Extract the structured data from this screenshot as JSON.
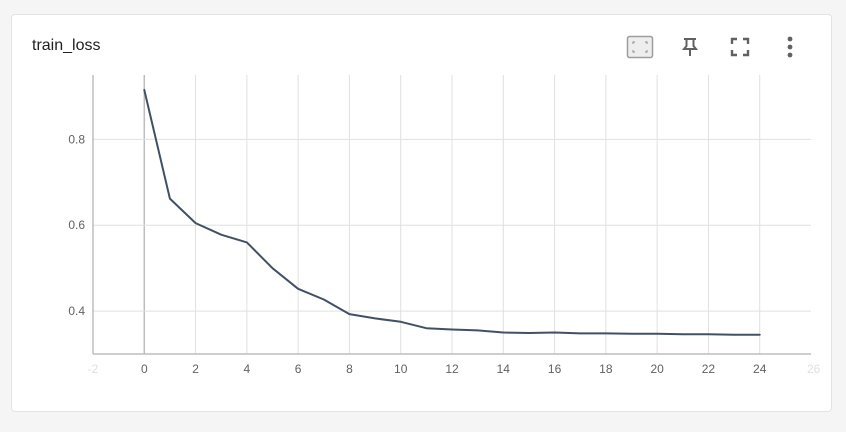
{
  "card": {
    "title": "train_loss",
    "tools": [
      {
        "name": "fit-domain-icon",
        "tooltip": ""
      },
      {
        "name": "pin-icon",
        "tooltip": ""
      },
      {
        "name": "fullscreen-icon",
        "tooltip": ""
      },
      {
        "name": "more-vert-icon",
        "tooltip": ""
      }
    ]
  },
  "chart_data": {
    "type": "line",
    "title": "train_loss",
    "xlabel": "",
    "ylabel": "",
    "xlim": [
      -2,
      26
    ],
    "ylim": [
      0.3,
      0.95
    ],
    "x_ticks": [
      0,
      2,
      4,
      6,
      8,
      10,
      12,
      14,
      16,
      18,
      20,
      22,
      24
    ],
    "y_ticks": [
      0.4,
      0.6,
      0.8
    ],
    "grid": true,
    "series_color": "#425066",
    "series": [
      {
        "x": [
          0,
          1,
          2,
          3,
          4,
          5,
          6,
          7,
          8,
          9,
          10,
          11,
          12,
          13,
          14,
          15,
          16,
          17,
          18,
          19,
          20,
          21,
          22,
          23,
          24
        ],
        "values": [
          0.915,
          0.662,
          0.605,
          0.578,
          0.56,
          0.5,
          0.452,
          0.427,
          0.393,
          0.383,
          0.375,
          0.36,
          0.357,
          0.355,
          0.35,
          0.349,
          0.35,
          0.348,
          0.348,
          0.347,
          0.347,
          0.346,
          0.346,
          0.345,
          0.345
        ]
      }
    ]
  }
}
